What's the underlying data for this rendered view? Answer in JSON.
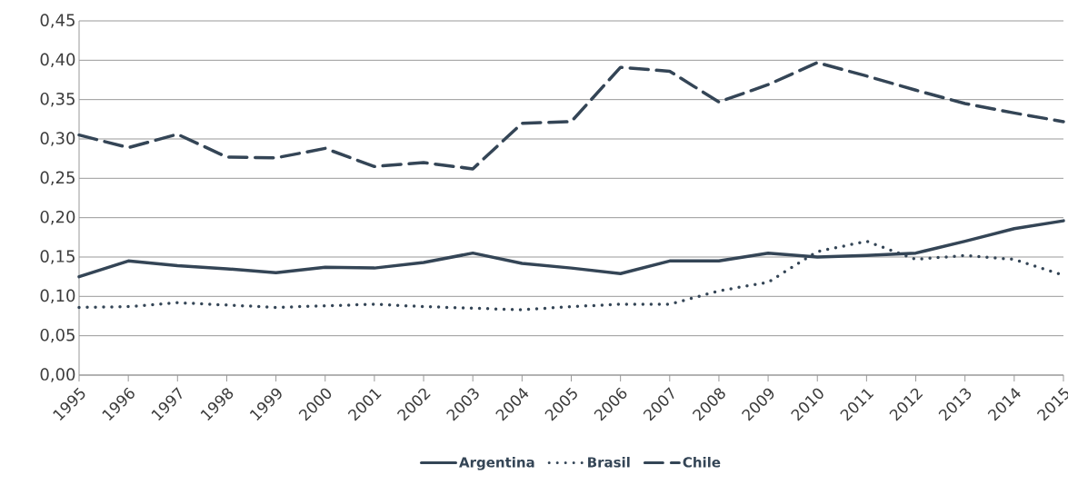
{
  "chart_data": {
    "type": "line",
    "categories": [
      "1995",
      "1996",
      "1997",
      "1998",
      "1999",
      "2000",
      "2001",
      "2002",
      "2003",
      "2004",
      "2005",
      "2006",
      "2007",
      "2008",
      "2009",
      "2010",
      "2011",
      "2012",
      "2013",
      "2014",
      "2015"
    ],
    "series": [
      {
        "name": "Argentina",
        "color": "#344556",
        "line_style": "solid",
        "values": [
          0.125,
          0.145,
          0.139,
          0.135,
          0.13,
          0.137,
          0.136,
          0.143,
          0.155,
          0.142,
          0.136,
          0.129,
          0.145,
          0.145,
          0.155,
          0.15,
          0.152,
          0.155,
          0.17,
          0.186,
          0.196
        ]
      },
      {
        "name": "Brasil",
        "color": "#344556",
        "line_style": "dotted",
        "values": [
          0.086,
          0.087,
          0.092,
          0.089,
          0.086,
          0.088,
          0.09,
          0.087,
          0.085,
          0.083,
          0.087,
          0.09,
          0.09,
          0.107,
          0.118,
          0.157,
          0.17,
          0.147,
          0.152,
          0.147,
          0.127
        ]
      },
      {
        "name": "Chile",
        "color": "#344556",
        "line_style": "dashed",
        "values": [
          0.305,
          0.289,
          0.306,
          0.277,
          0.276,
          0.288,
          0.265,
          0.27,
          0.262,
          0.32,
          0.322,
          0.391,
          0.386,
          0.347,
          0.369,
          0.397,
          0.38,
          0.362,
          0.345,
          0.333,
          0.322
        ]
      }
    ],
    "ylim": [
      0,
      0.45
    ],
    "yticks": [
      {
        "value": 0,
        "label": "0,00"
      },
      {
        "value": 0.05,
        "label": "0,05"
      },
      {
        "value": 0.1,
        "label": "0,10"
      },
      {
        "value": 0.15,
        "label": "0,15"
      },
      {
        "value": 0.2,
        "label": "0,20"
      },
      {
        "value": 0.25,
        "label": "0,25"
      },
      {
        "value": 0.3,
        "label": "0,30"
      },
      {
        "value": 0.35,
        "label": "0,35"
      },
      {
        "value": 0.4,
        "label": "0,40"
      },
      {
        "value": 0.45,
        "label": "0,45"
      }
    ],
    "grid": "y",
    "legend": "bottom",
    "marker": "none"
  }
}
